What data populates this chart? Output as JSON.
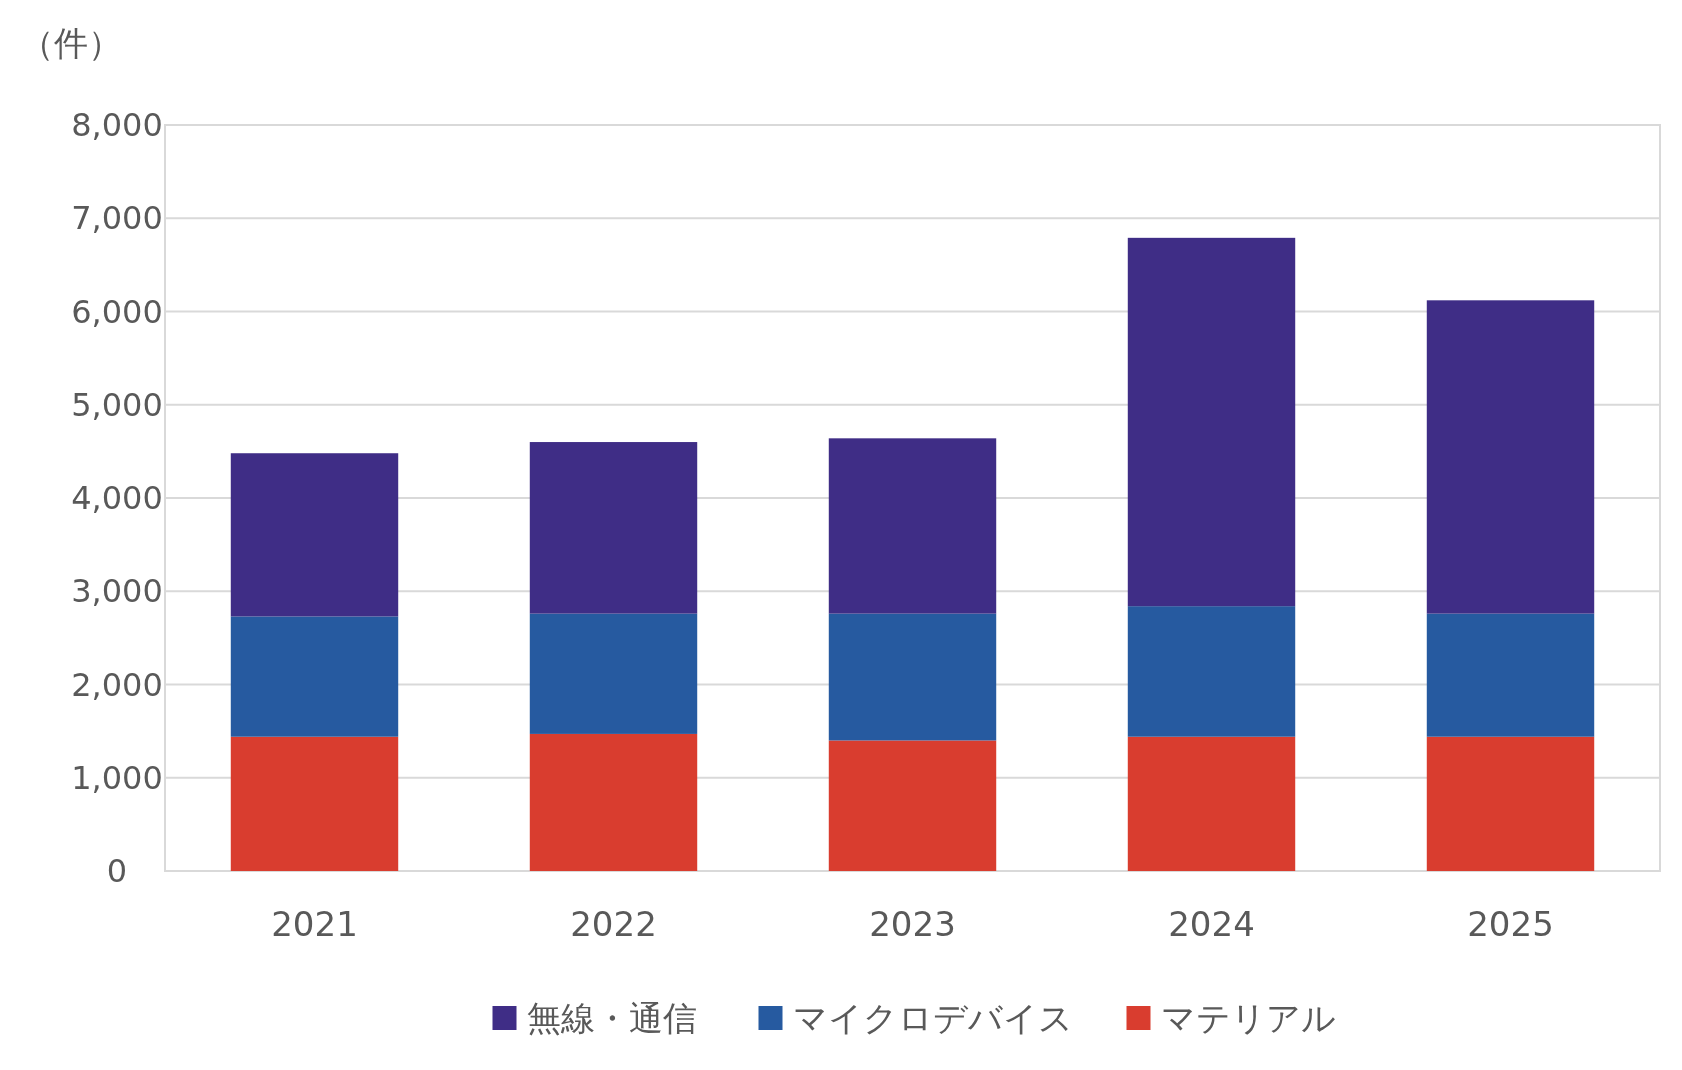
{
  "chart_data": {
    "type": "bar",
    "stacked": true,
    "ylabel": "（件）",
    "categories": [
      "2021",
      "2022",
      "2023",
      "2024",
      "2025"
    ],
    "series": [
      {
        "name": "マテリアル",
        "color": "#d93d2f",
        "values": [
          1440,
          1470,
          1400,
          1440,
          1440
        ]
      },
      {
        "name": "マイクロデバイス",
        "color": "#265aa0",
        "values": [
          1290,
          1290,
          1360,
          1400,
          1320
        ]
      },
      {
        "name": "無線・通信",
        "color": "#3f2d86",
        "values": [
          1750,
          1840,
          1880,
          3950,
          3360
        ]
      }
    ],
    "ylim": [
      0,
      8000
    ],
    "yticks": [
      0,
      {
        "value": 1000,
        "label": "1,000"
      },
      {
        "value": 2000,
        "label": "2,000"
      },
      {
        "value": 3000,
        "label": "3,000"
      },
      {
        "value": 4000,
        "label": "4,000"
      },
      {
        "value": 5000,
        "label": "5,000"
      },
      {
        "value": 6000,
        "label": "6,000"
      },
      {
        "value": 7000,
        "label": "7,000"
      },
      {
        "value": 8000,
        "label": "8,000"
      }
    ],
    "grid": "y",
    "legend": "bottom"
  }
}
